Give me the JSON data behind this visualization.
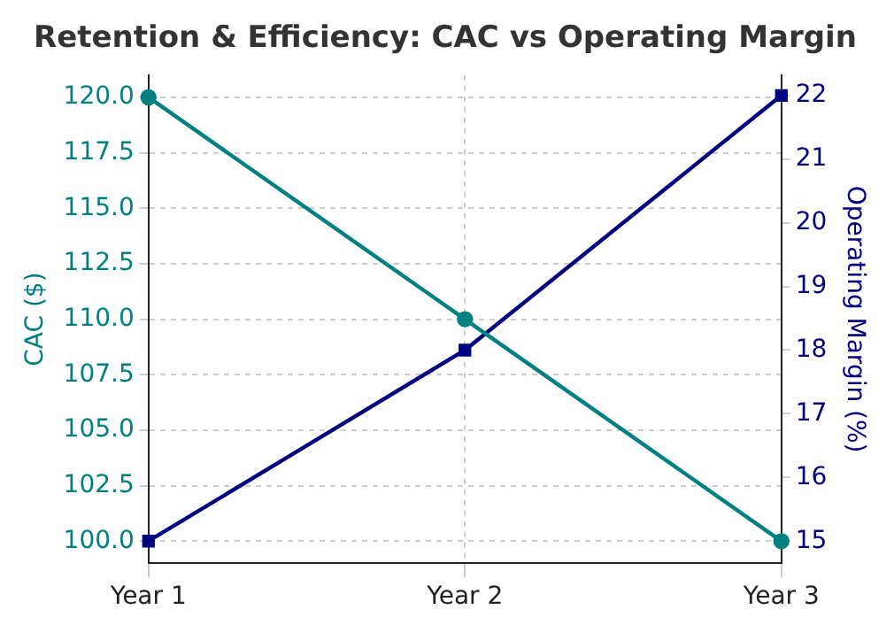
{
  "chart_data": {
    "type": "line",
    "title": "Retention & Efficiency: CAC vs Operating Margin",
    "ylabel": "CAC ($)",
    "y2label": "Operating Margin (%)",
    "categories": [
      "Year 1",
      "Year 2",
      "Year 3"
    ],
    "series": [
      {
        "color": "#008080",
        "values": [
          120,
          110,
          100
        ],
        "marker": "circle"
      },
      {
        "color": "#000080",
        "values": [
          15,
          18,
          22
        ],
        "axis": "y2",
        "marker": "square"
      }
    ],
    "ylim": [
      99,
      121
    ],
    "yticks": [
      {
        "value": 100,
        "label": "100.0"
      },
      {
        "value": 102.5,
        "label": "102.5"
      },
      {
        "value": 105,
        "label": "105.0"
      },
      {
        "value": 107.5,
        "label": "107.5"
      },
      {
        "value": 110,
        "label": "110.0"
      },
      {
        "value": 112.5,
        "label": "112.5"
      },
      {
        "value": 115,
        "label": "115.0"
      },
      {
        "value": 117.5,
        "label": "117.5"
      },
      {
        "value": 120,
        "label": "120.0"
      }
    ],
    "y2lim": [
      14.65,
      22.32
    ],
    "y2ticks": [
      15,
      16,
      17,
      18,
      19,
      20,
      21,
      22
    ],
    "grid": true,
    "legend": false,
    "line_style": "solid"
  }
}
